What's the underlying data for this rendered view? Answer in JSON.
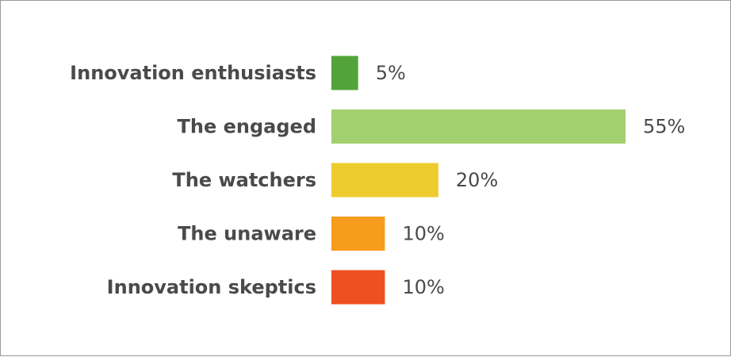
{
  "chart_data": {
    "type": "bar",
    "orientation": "horizontal",
    "categories": [
      "Innovation enthusiasts",
      "The engaged",
      "The watchers",
      "The unaware",
      "Innovation skeptics"
    ],
    "values": [
      5,
      55,
      20,
      10,
      10
    ],
    "labels": [
      "5%",
      "55%",
      "20%",
      "10%",
      "10%"
    ],
    "colors": [
      "#52a33a",
      "#a3d06e",
      "#eecc2e",
      "#f79c1c",
      "#ee5022"
    ],
    "unit": "%",
    "title": "",
    "xlabel": "",
    "ylabel": "",
    "grid": false,
    "legend": "none"
  }
}
